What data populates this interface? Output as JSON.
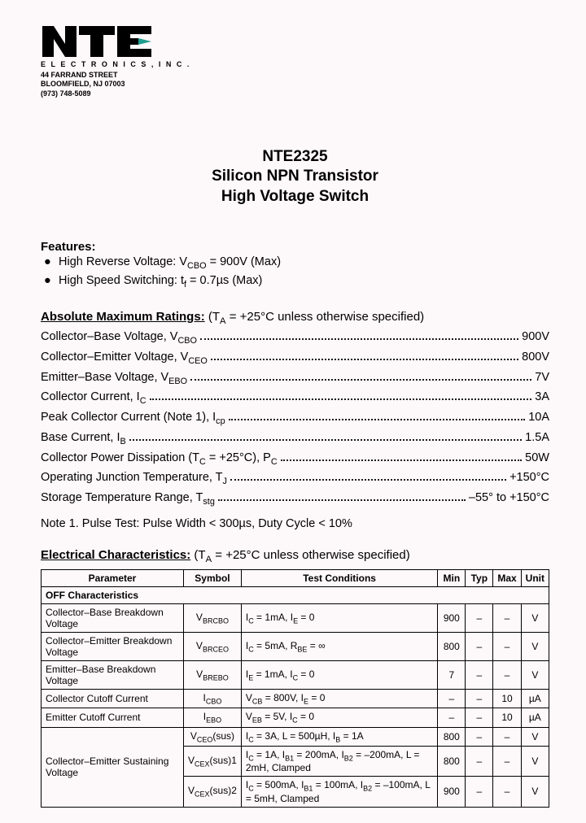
{
  "company": {
    "name": "NTE",
    "tagline": "E L E C T R O N I C S ,  I N C .",
    "addr1": "44 FARRAND STREET",
    "addr2": "BLOOMFIELD, NJ 07003",
    "phone": "(973) 748-5089",
    "logo_accent": "#1f9e8e"
  },
  "title": {
    "l1": "NTE2325",
    "l2": "Silicon NPN Transistor",
    "l3": "High Voltage Switch"
  },
  "features": {
    "label": "Features:",
    "items": [
      "High Reverse Voltage:  V_CBO = 900V (Max)",
      "High Speed Switching:  t_f = 0.7µs (Max)"
    ]
  },
  "ratings": {
    "heading_u": "Absolute Maximum Ratings:",
    "heading_cond": "  (T_A = +25°C unless otherwise specified)",
    "rows": [
      {
        "label": "Collector–Base Voltage, V_CBO",
        "value": "900V"
      },
      {
        "label": "Collector–Emitter Voltage, V_CEO",
        "value": "800V"
      },
      {
        "label": "Emitter–Base Voltage, V_EBO",
        "value": "7V"
      },
      {
        "label": "Collector Current, I_C",
        "value": "3A"
      },
      {
        "label": "Peak Collector Current (Note 1), I_cp",
        "value": "10A"
      },
      {
        "label": "Base Current, I_B",
        "value": "1.5A"
      },
      {
        "label": "Collector Power Dissipation (T_C = +25°C), P_C",
        "value": "50W"
      },
      {
        "label": "Operating Junction Temperature, T_J",
        "value": "+150°C"
      },
      {
        "label": "Storage Temperature Range, T_stg",
        "value": "–55° to +150°C"
      }
    ],
    "note": "Note  1. Pulse Test:  Pulse Width < 300µs, Duty Cycle < 10%"
  },
  "electrical": {
    "heading_u": "Electrical Characteristics:",
    "heading_cond": "  (T_A = +25°C unless otherwise specified)",
    "columns": [
      "Parameter",
      "Symbol",
      "Test Conditions",
      "Min",
      "Typ",
      "Max",
      "Unit"
    ],
    "subhead": "OFF Characteristics",
    "rows": [
      {
        "param": "Collector–Base Breakdown Voltage",
        "symbol": "V_(BR)CBO",
        "cond": "I_C = 1mA, I_E = 0",
        "min": "900",
        "typ": "–",
        "max": "–",
        "unit": "V",
        "rowspan": 1
      },
      {
        "param": "Collector–Emitter Breakdown Voltage",
        "symbol": "V_(BR)CEO",
        "cond": "I_C = 5mA, R_BE = ∞",
        "min": "800",
        "typ": "–",
        "max": "–",
        "unit": "V",
        "rowspan": 1
      },
      {
        "param": "Emitter–Base Breakdown Voltage",
        "symbol": "V_(BR)EBO",
        "cond": "I_E = 1mA, I_C = 0",
        "min": "7",
        "typ": "–",
        "max": "–",
        "unit": "V",
        "rowspan": 1
      },
      {
        "param": "Collector Cutoff Current",
        "symbol": "I_CBO",
        "cond": "V_CB = 800V, I_E = 0",
        "min": "–",
        "typ": "–",
        "max": "10",
        "unit": "µA",
        "rowspan": 1
      },
      {
        "param": "Emitter Cutoff Current",
        "symbol": "I_EBO",
        "cond": "V_EB = 5V, I_C = 0",
        "min": "–",
        "typ": "–",
        "max": "10",
        "unit": "µA",
        "rowspan": 1
      },
      {
        "param": "Collector–Emitter Sustaining Voltage",
        "symbol": "V_CEO(sus)",
        "cond": "I_C = 3A, L = 500µH, I_B = 1A",
        "min": "800",
        "typ": "–",
        "max": "–",
        "unit": "V",
        "rowspan": 3
      },
      {
        "param": "",
        "symbol": "V_CEX(sus)1",
        "cond": "I_C = 1A, I_B1 = 200mA, I_B2 = –200mA, L = 2mH, Clamped",
        "min": "800",
        "typ": "–",
        "max": "–",
        "unit": "V",
        "rowspan": 0
      },
      {
        "param": "",
        "symbol": "V_CEX(sus)2",
        "cond": "I_C = 500mA, I_B1 = 100mA, I_B2 = –100mA, L = 5mH, Clamped",
        "min": "900",
        "typ": "–",
        "max": "–",
        "unit": "V",
        "rowspan": 0
      }
    ]
  }
}
